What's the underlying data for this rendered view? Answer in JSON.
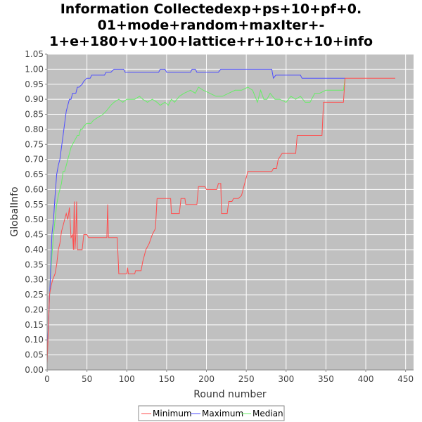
{
  "chart_data": {
    "type": "line",
    "title_lines": [
      "Information Collectedexp+ps+10+pf+0.",
      "01+mode+random+maxIter+-",
      "1+e+180+v+100+lattice+r+10+c+10+info"
    ],
    "xlabel": "Round number",
    "ylabel": "GlobalInfo",
    "xlim": [
      0,
      460
    ],
    "ylim": [
      0,
      1.05
    ],
    "x_ticks": [
      0,
      50,
      100,
      150,
      200,
      250,
      300,
      350,
      400,
      450
    ],
    "y_ticks": [
      0.0,
      0.05,
      0.1,
      0.15,
      0.2,
      0.25,
      0.3,
      0.35,
      0.4,
      0.45,
      0.5,
      0.55,
      0.6,
      0.65,
      0.7,
      0.75,
      0.8,
      0.85,
      0.9,
      0.95,
      1.0,
      1.05
    ],
    "grid": true,
    "legend_position": "bottom-center",
    "series": [
      {
        "name": "Minimum",
        "color": "#ff4d4d",
        "points": [
          [
            0,
            0.02
          ],
          [
            3,
            0.25
          ],
          [
            5,
            0.28
          ],
          [
            7,
            0.3
          ],
          [
            10,
            0.32
          ],
          [
            12,
            0.35
          ],
          [
            14,
            0.4
          ],
          [
            16,
            0.42
          ],
          [
            18,
            0.46
          ],
          [
            20,
            0.48
          ],
          [
            22,
            0.5
          ],
          [
            24,
            0.52
          ],
          [
            26,
            0.5
          ],
          [
            28,
            0.54
          ],
          [
            30,
            0.44
          ],
          [
            32,
            0.45
          ],
          [
            33,
            0.4
          ],
          [
            34,
            0.56
          ],
          [
            35,
            0.4
          ],
          [
            36,
            0.45
          ],
          [
            37,
            0.56
          ],
          [
            38,
            0.4
          ],
          [
            44,
            0.4
          ],
          [
            46,
            0.45
          ],
          [
            50,
            0.45
          ],
          [
            52,
            0.44
          ],
          [
            75,
            0.44
          ],
          [
            76,
            0.55
          ],
          [
            77,
            0.44
          ],
          [
            88,
            0.44
          ],
          [
            90,
            0.32
          ],
          [
            100,
            0.32
          ],
          [
            101,
            0.34
          ],
          [
            102,
            0.32
          ],
          [
            110,
            0.32
          ],
          [
            111,
            0.33
          ],
          [
            118,
            0.33
          ],
          [
            120,
            0.36
          ],
          [
            124,
            0.4
          ],
          [
            128,
            0.42
          ],
          [
            132,
            0.45
          ],
          [
            136,
            0.47
          ],
          [
            138,
            0.57
          ],
          [
            155,
            0.57
          ],
          [
            156,
            0.52
          ],
          [
            166,
            0.52
          ],
          [
            168,
            0.57
          ],
          [
            173,
            0.57
          ],
          [
            174,
            0.55
          ],
          [
            188,
            0.55
          ],
          [
            190,
            0.61
          ],
          [
            198,
            0.61
          ],
          [
            200,
            0.6
          ],
          [
            213,
            0.6
          ],
          [
            215,
            0.62
          ],
          [
            218,
            0.62
          ],
          [
            219,
            0.52
          ],
          [
            226,
            0.52
          ],
          [
            228,
            0.56
          ],
          [
            232,
            0.56
          ],
          [
            234,
            0.57
          ],
          [
            240,
            0.57
          ],
          [
            244,
            0.58
          ],
          [
            246,
            0.6
          ],
          [
            248,
            0.62
          ],
          [
            252,
            0.66
          ],
          [
            282,
            0.66
          ],
          [
            284,
            0.67
          ],
          [
            288,
            0.67
          ],
          [
            290,
            0.7
          ],
          [
            295,
            0.72
          ],
          [
            312,
            0.72
          ],
          [
            314,
            0.78
          ],
          [
            345,
            0.78
          ],
          [
            347,
            0.89
          ],
          [
            372,
            0.89
          ],
          [
            374,
            0.97
          ],
          [
            437,
            0.97
          ]
        ]
      },
      {
        "name": "Maximum",
        "color": "#4d4dff",
        "points": [
          [
            0,
            0.05
          ],
          [
            4,
            0.3
          ],
          [
            6,
            0.45
          ],
          [
            8,
            0.5
          ],
          [
            10,
            0.58
          ],
          [
            12,
            0.65
          ],
          [
            14,
            0.68
          ],
          [
            16,
            0.7
          ],
          [
            18,
            0.74
          ],
          [
            20,
            0.78
          ],
          [
            22,
            0.82
          ],
          [
            24,
            0.86
          ],
          [
            26,
            0.88
          ],
          [
            28,
            0.9
          ],
          [
            30,
            0.9
          ],
          [
            32,
            0.92
          ],
          [
            36,
            0.92
          ],
          [
            38,
            0.94
          ],
          [
            40,
            0.94
          ],
          [
            44,
            0.95
          ],
          [
            46,
            0.96
          ],
          [
            50,
            0.97
          ],
          [
            54,
            0.97
          ],
          [
            56,
            0.98
          ],
          [
            72,
            0.98
          ],
          [
            74,
            0.99
          ],
          [
            78,
            0.99
          ],
          [
            80,
            0.99
          ],
          [
            84,
            1.0
          ],
          [
            96,
            1.0
          ],
          [
            98,
            0.99
          ],
          [
            140,
            0.99
          ],
          [
            142,
            1.0
          ],
          [
            148,
            1.0
          ],
          [
            150,
            0.99
          ],
          [
            180,
            0.99
          ],
          [
            182,
            1.0
          ],
          [
            186,
            1.0
          ],
          [
            188,
            0.99
          ],
          [
            215,
            0.99
          ],
          [
            218,
            1.0
          ],
          [
            282,
            1.0
          ],
          [
            284,
            0.97
          ],
          [
            287,
            0.98
          ],
          [
            318,
            0.98
          ],
          [
            320,
            0.97
          ],
          [
            374,
            0.97
          ]
        ]
      },
      {
        "name": "Median",
        "color": "#66ee66",
        "points": [
          [
            0,
            0.04
          ],
          [
            4,
            0.3
          ],
          [
            6,
            0.38
          ],
          [
            8,
            0.45
          ],
          [
            10,
            0.5
          ],
          [
            12,
            0.55
          ],
          [
            14,
            0.58
          ],
          [
            16,
            0.6
          ],
          [
            18,
            0.62
          ],
          [
            20,
            0.66
          ],
          [
            22,
            0.66
          ],
          [
            24,
            0.68
          ],
          [
            26,
            0.7
          ],
          [
            28,
            0.72
          ],
          [
            30,
            0.74
          ],
          [
            32,
            0.75
          ],
          [
            34,
            0.76
          ],
          [
            36,
            0.77
          ],
          [
            38,
            0.78
          ],
          [
            40,
            0.78
          ],
          [
            42,
            0.8
          ],
          [
            44,
            0.8
          ],
          [
            46,
            0.81
          ],
          [
            50,
            0.82
          ],
          [
            55,
            0.82
          ],
          [
            58,
            0.83
          ],
          [
            64,
            0.84
          ],
          [
            70,
            0.85
          ],
          [
            74,
            0.86
          ],
          [
            80,
            0.88
          ],
          [
            84,
            0.89
          ],
          [
            90,
            0.9
          ],
          [
            95,
            0.89
          ],
          [
            100,
            0.9
          ],
          [
            110,
            0.9
          ],
          [
            116,
            0.91
          ],
          [
            120,
            0.9
          ],
          [
            126,
            0.89
          ],
          [
            132,
            0.9
          ],
          [
            138,
            0.89
          ],
          [
            142,
            0.88
          ],
          [
            148,
            0.89
          ],
          [
            152,
            0.88
          ],
          [
            156,
            0.9
          ],
          [
            160,
            0.89
          ],
          [
            166,
            0.91
          ],
          [
            172,
            0.92
          ],
          [
            180,
            0.93
          ],
          [
            186,
            0.92
          ],
          [
            190,
            0.94
          ],
          [
            196,
            0.93
          ],
          [
            204,
            0.92
          ],
          [
            212,
            0.91
          ],
          [
            220,
            0.91
          ],
          [
            228,
            0.92
          ],
          [
            236,
            0.93
          ],
          [
            244,
            0.93
          ],
          [
            252,
            0.94
          ],
          [
            258,
            0.93
          ],
          [
            264,
            0.89
          ],
          [
            268,
            0.93
          ],
          [
            272,
            0.9
          ],
          [
            276,
            0.9
          ],
          [
            280,
            0.92
          ],
          [
            286,
            0.9
          ],
          [
            292,
            0.9
          ],
          [
            300,
            0.89
          ],
          [
            306,
            0.91
          ],
          [
            312,
            0.9
          ],
          [
            318,
            0.91
          ],
          [
            324,
            0.89
          ],
          [
            330,
            0.89
          ],
          [
            336,
            0.92
          ],
          [
            342,
            0.92
          ],
          [
            350,
            0.93
          ],
          [
            362,
            0.93
          ],
          [
            372,
            0.93
          ],
          [
            374,
            0.97
          ]
        ]
      }
    ]
  }
}
